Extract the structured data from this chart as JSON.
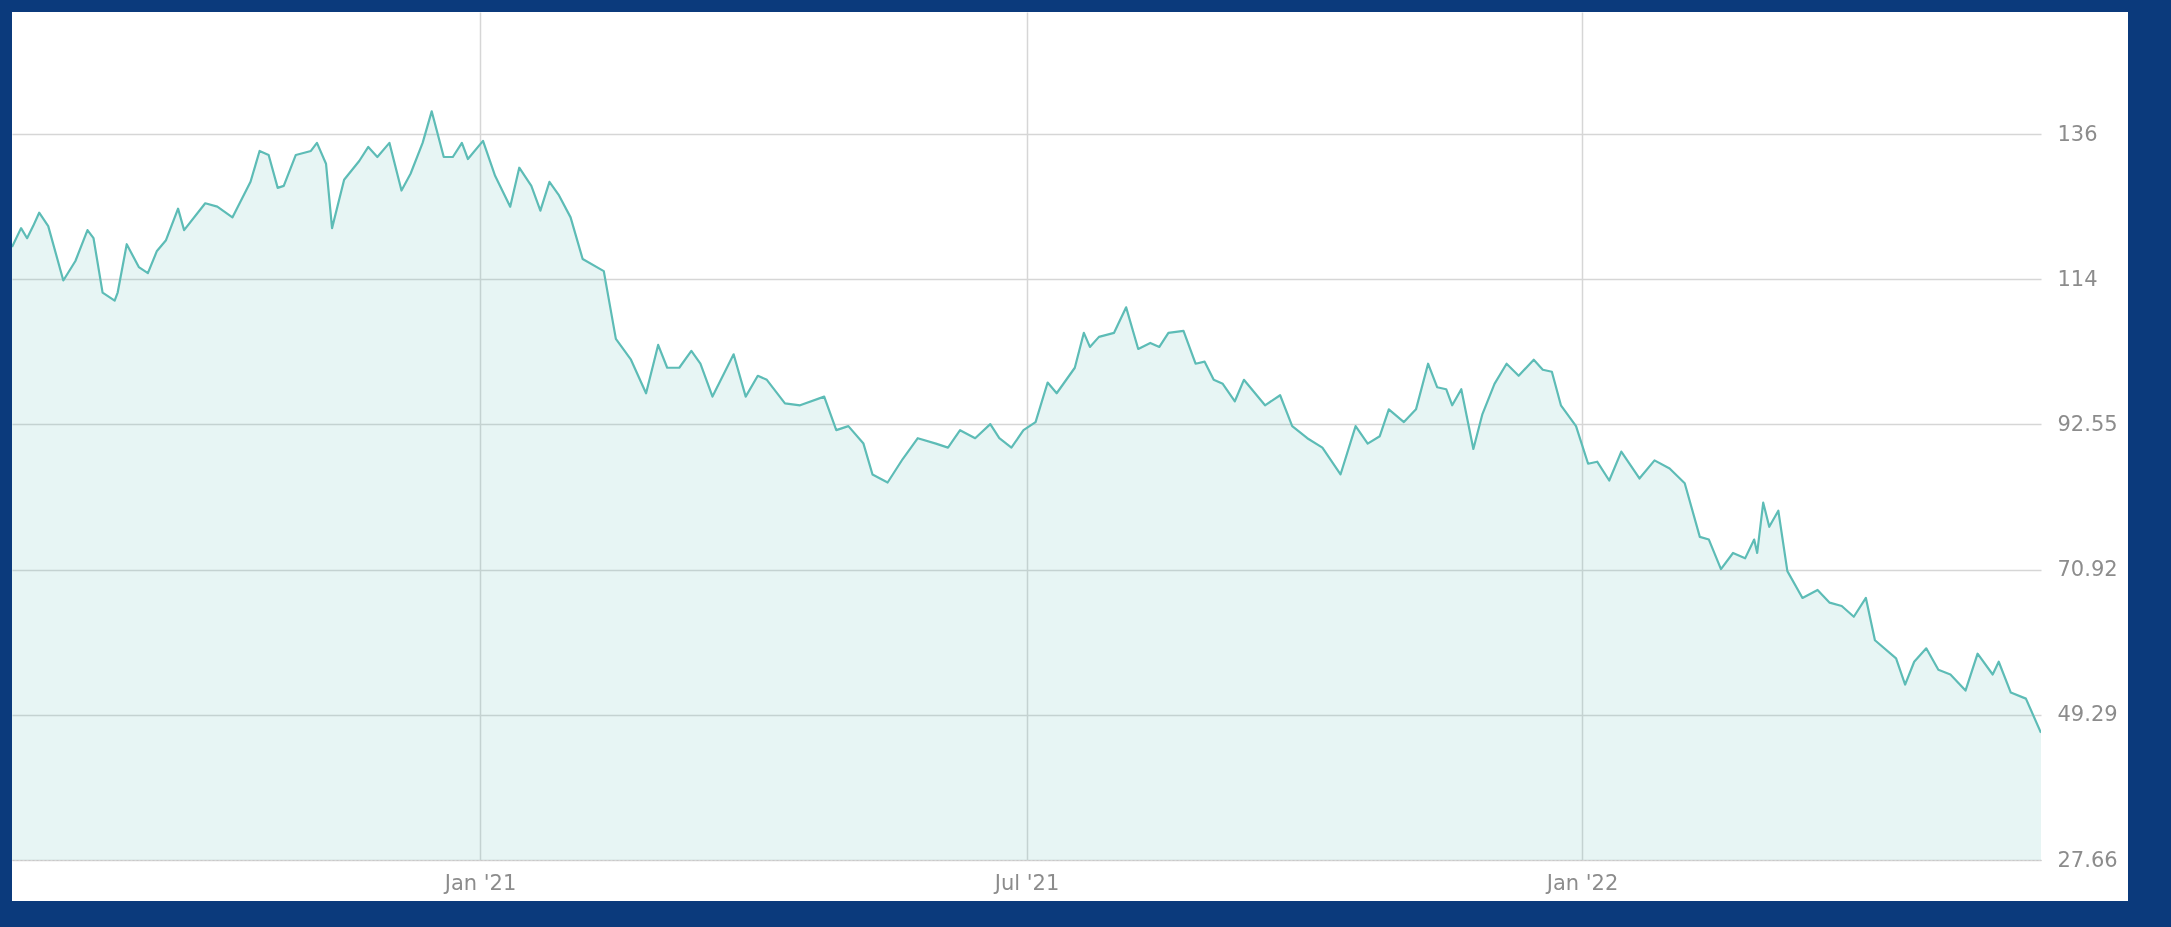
{
  "chart_data": {
    "type": "area",
    "x": [
      "2020-07-30",
      "2020-08-02",
      "2020-08-04",
      "2020-08-06",
      "2020-08-08",
      "2020-08-11",
      "2020-08-16",
      "2020-08-20",
      "2020-08-24",
      "2020-08-26",
      "2020-08-29",
      "2020-09-02",
      "2020-09-03",
      "2020-09-06",
      "2020-09-10",
      "2020-09-13",
      "2020-09-16",
      "2020-09-19",
      "2020-09-23",
      "2020-09-25",
      "2020-10-02",
      "2020-10-06",
      "2020-10-11",
      "2020-10-17",
      "2020-10-20",
      "2020-10-23",
      "2020-10-26",
      "2020-10-28",
      "2020-11-01",
      "2020-11-06",
      "2020-11-08",
      "2020-11-11",
      "2020-11-13",
      "2020-11-17",
      "2020-11-22",
      "2020-11-25",
      "2020-11-28",
      "2020-12-02",
      "2020-12-06",
      "2020-12-09",
      "2020-12-13",
      "2020-12-16",
      "2020-12-20",
      "2020-12-23",
      "2020-12-26",
      "2020-12-28",
      "2021-01-02",
      "2021-01-06",
      "2021-01-11",
      "2021-01-14",
      "2021-01-18",
      "2021-01-21",
      "2021-01-24",
      "2021-01-27",
      "2021-01-31",
      "2021-02-04",
      "2021-02-11",
      "2021-02-15",
      "2021-02-20",
      "2021-02-25",
      "2021-03-01",
      "2021-03-04",
      "2021-03-08",
      "2021-03-12",
      "2021-03-15",
      "2021-03-19",
      "2021-03-26",
      "2021-03-30",
      "2021-04-03",
      "2021-04-06",
      "2021-04-12",
      "2021-04-17",
      "2021-04-25",
      "2021-04-29",
      "2021-05-03",
      "2021-05-08",
      "2021-05-11",
      "2021-05-16",
      "2021-05-21",
      "2021-05-26",
      "2021-06-01",
      "2021-06-05",
      "2021-06-09",
      "2021-06-14",
      "2021-06-19",
      "2021-06-22",
      "2021-06-26",
      "2021-06-30",
      "2021-07-04",
      "2021-07-08",
      "2021-07-11",
      "2021-07-17",
      "2021-07-20",
      "2021-07-22",
      "2021-07-25",
      "2021-07-30",
      "2021-08-03",
      "2021-08-07",
      "2021-08-11",
      "2021-08-14",
      "2021-08-17",
      "2021-08-22",
      "2021-08-26",
      "2021-08-29",
      "2021-09-01",
      "2021-09-04",
      "2021-09-08",
      "2021-09-11",
      "2021-09-18",
      "2021-09-23",
      "2021-09-27",
      "2021-10-02",
      "2021-10-07",
      "2021-10-13",
      "2021-10-18",
      "2021-10-22",
      "2021-10-26",
      "2021-10-29",
      "2021-11-03",
      "2021-11-07",
      "2021-11-11",
      "2021-11-14",
      "2021-11-17",
      "2021-11-19",
      "2021-11-22",
      "2021-11-26",
      "2021-11-29",
      "2021-12-03",
      "2021-12-07",
      "2021-12-11",
      "2021-12-16",
      "2021-12-19",
      "2021-12-22",
      "2021-12-25",
      "2021-12-30",
      "2022-01-03",
      "2022-01-06",
      "2022-01-10",
      "2022-01-14",
      "2022-01-20",
      "2022-01-25",
      "2022-01-30",
      "2022-02-04",
      "2022-02-09",
      "2022-02-12",
      "2022-02-16",
      "2022-02-20",
      "2022-02-24",
      "2022-02-27",
      "2022-02-28",
      "2022-03-02",
      "2022-03-04",
      "2022-03-07",
      "2022-03-10",
      "2022-03-15",
      "2022-03-20",
      "2022-03-24",
      "2022-03-28",
      "2022-04-01",
      "2022-04-05",
      "2022-04-08",
      "2022-04-15",
      "2022-04-18",
      "2022-04-21",
      "2022-04-25",
      "2022-04-29",
      "2022-05-03",
      "2022-05-08",
      "2022-05-12",
      "2022-05-17",
      "2022-05-19",
      "2022-05-23",
      "2022-05-28",
      "2022-06-02"
    ],
    "series": [
      {
        "color": "#5dbcb6",
        "values": [
          119.0,
          121.8,
          120.3,
          122.1,
          124.1,
          122.1,
          114.0,
          116.9,
          121.5,
          120.3,
          112.2,
          111.0,
          112.2,
          119.4,
          116.0,
          115.1,
          118.4,
          120.0,
          124.7,
          121.5,
          125.5,
          125.0,
          123.4,
          128.7,
          133.3,
          132.7,
          127.8,
          128.1,
          132.7,
          133.3,
          134.5,
          131.4,
          121.8,
          129.0,
          131.8,
          133.9,
          132.4,
          134.5,
          127.4,
          129.9,
          134.5,
          139.2,
          132.4,
          132.4,
          134.5,
          132.1,
          134.8,
          129.6,
          125.0,
          130.8,
          128.1,
          124.4,
          128.7,
          126.8,
          123.4,
          117.2,
          115.4,
          105.3,
          102.2,
          97.2,
          104.4,
          101.0,
          101.0,
          103.5,
          101.6,
          96.7,
          103.0,
          96.7,
          99.8,
          99.2,
          95.7,
          95.4,
          96.7,
          91.7,
          92.3,
          89.7,
          85.1,
          83.9,
          87.4,
          90.5,
          89.7,
          89.1,
          91.7,
          90.5,
          92.6,
          90.5,
          89.1,
          91.7,
          92.9,
          98.8,
          97.2,
          101.0,
          106.2,
          104.1,
          105.6,
          106.2,
          110.0,
          103.8,
          104.7,
          104.1,
          106.2,
          106.5,
          101.6,
          101.9,
          99.2,
          98.6,
          96.0,
          99.2,
          95.4,
          96.9,
          92.3,
          90.5,
          89.1,
          85.1,
          92.3,
          89.7,
          90.8,
          94.8,
          92.9,
          94.8,
          101.6,
          98.1,
          97.8,
          95.4,
          97.8,
          88.9,
          94.1,
          98.6,
          101.6,
          99.8,
          102.2,
          100.7,
          100.4,
          95.4,
          92.3,
          86.7,
          87.0,
          84.2,
          88.5,
          84.5,
          87.2,
          86.0,
          83.8,
          75.8,
          75.4,
          71.0,
          73.4,
          72.6,
          75.4,
          73.4,
          80.9,
          77.3,
          79.7,
          70.7,
          66.7,
          67.9,
          66.0,
          65.5,
          63.9,
          66.7,
          60.4,
          57.7,
          53.8,
          57.2,
          59.2,
          56.0,
          55.3,
          52.9,
          58.4,
          55.3,
          57.2,
          52.6,
          51.7,
          46.6
        ]
      }
    ],
    "xlim": [
      "2020-07-30",
      "2022-06-02"
    ],
    "xticks": [
      {
        "value": "2021-01-01",
        "label": "Jan '21"
      },
      {
        "value": "2021-07-01",
        "label": "Jul '21"
      },
      {
        "value": "2022-01-01",
        "label": "Jan '22"
      }
    ],
    "ylim": [
      27.66,
      154
    ],
    "yticks": [
      27.66,
      49.29,
      70.92,
      92.55,
      {
        "value": 114.18,
        "label": "114"
      },
      {
        "value": 135.81,
        "label": "136"
      }
    ],
    "grid": true
  }
}
